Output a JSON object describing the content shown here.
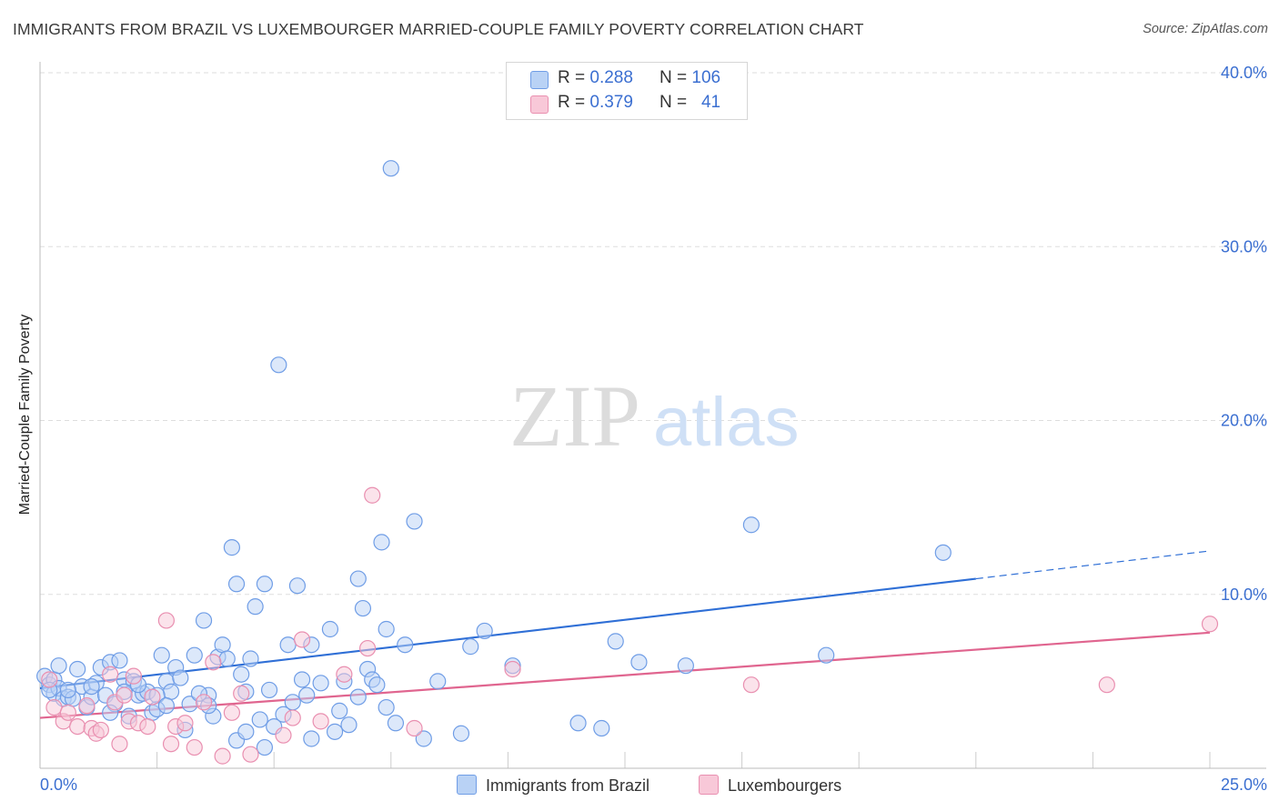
{
  "title": "IMMIGRANTS FROM BRAZIL VS LUXEMBOURGER MARRIED-COUPLE FAMILY POVERTY CORRELATION CHART",
  "source": "Source: ZipAtlas.com",
  "watermark": {
    "zip": "ZIP",
    "atlas": "atlas"
  },
  "legend_top": {
    "rows": [
      {
        "series": "Immigrants from Brazil",
        "r_label": "R =",
        "r_value": "0.288",
        "n_label": "N =",
        "n_value": "106",
        "color": "#b9d2f5"
      },
      {
        "series": "Luxembourgers",
        "r_label": "R =",
        "r_value": "0.379",
        "n_label": "N =",
        "n_value": "41",
        "color": "#f8c8d8"
      }
    ]
  },
  "legend_bottom": [
    "Immigrants from Brazil",
    "Luxembourgers"
  ],
  "chart_data": {
    "type": "scatter",
    "title": "IMMIGRANTS FROM BRAZIL VS LUXEMBOURGER MARRIED-COUPLE FAMILY POVERTY CORRELATION CHART",
    "xlabel": "",
    "ylabel": "Married-Couple Family Poverty",
    "xlim": [
      0,
      25
    ],
    "ylim": [
      0,
      40
    ],
    "x_tick_labels": [
      "0.0%",
      "25.0%"
    ],
    "y_tick_labels": [
      "10.0%",
      "20.0%",
      "30.0%",
      "40.0%"
    ],
    "y_ticks": [
      10,
      20,
      30,
      40
    ],
    "grid": true,
    "series": [
      {
        "name": "Immigrants from Brazil",
        "color": "#6f9de6",
        "fill": "#b9d2f5",
        "trend": {
          "x0": 0,
          "y0": 4.6,
          "x1": 20,
          "y1": 10.9,
          "dash_to_x": 25,
          "dash_to_y": 12.5,
          "color": "#2f6fd6"
        },
        "points": [
          [
            0.1,
            5.3
          ],
          [
            0.2,
            4.8
          ],
          [
            0.3,
            5.1
          ],
          [
            0.3,
            4.3
          ],
          [
            0.4,
            4.6
          ],
          [
            0.5,
            4.0
          ],
          [
            0.6,
            4.1
          ],
          [
            0.7,
            4.0
          ],
          [
            0.8,
            5.7
          ],
          [
            0.9,
            4.7
          ],
          [
            1.0,
            3.5
          ],
          [
            1.1,
            4.1
          ],
          [
            1.2,
            4.9
          ],
          [
            1.3,
            5.8
          ],
          [
            1.4,
            4.2
          ],
          [
            1.5,
            6.1
          ],
          [
            1.6,
            3.7
          ],
          [
            1.7,
            6.2
          ],
          [
            1.8,
            5.1
          ],
          [
            1.9,
            3.0
          ],
          [
            2.0,
            5.0
          ],
          [
            2.1,
            4.2
          ],
          [
            2.2,
            4.3
          ],
          [
            2.3,
            4.4
          ],
          [
            2.4,
            3.2
          ],
          [
            2.5,
            3.4
          ],
          [
            2.6,
            6.5
          ],
          [
            2.7,
            5.0
          ],
          [
            2.8,
            4.4
          ],
          [
            2.9,
            5.8
          ],
          [
            3.0,
            5.2
          ],
          [
            3.2,
            3.7
          ],
          [
            3.3,
            6.5
          ],
          [
            3.5,
            8.5
          ],
          [
            3.6,
            4.2
          ],
          [
            3.7,
            3.0
          ],
          [
            3.8,
            6.4
          ],
          [
            3.9,
            7.1
          ],
          [
            4.0,
            6.3
          ],
          [
            4.1,
            12.7
          ],
          [
            4.2,
            10.6
          ],
          [
            4.3,
            5.4
          ],
          [
            4.4,
            4.4
          ],
          [
            4.5,
            6.3
          ],
          [
            4.6,
            9.3
          ],
          [
            4.7,
            2.8
          ],
          [
            4.8,
            10.6
          ],
          [
            5.0,
            2.4
          ],
          [
            5.1,
            23.2
          ],
          [
            5.3,
            7.1
          ],
          [
            5.4,
            3.8
          ],
          [
            5.5,
            10.5
          ],
          [
            5.6,
            5.1
          ],
          [
            5.7,
            4.2
          ],
          [
            5.8,
            7.1
          ],
          [
            6.0,
            4.9
          ],
          [
            6.2,
            8.0
          ],
          [
            6.4,
            3.3
          ],
          [
            6.5,
            5.0
          ],
          [
            6.6,
            2.5
          ],
          [
            6.8,
            10.9
          ],
          [
            6.9,
            9.2
          ],
          [
            7.0,
            5.7
          ],
          [
            7.1,
            5.1
          ],
          [
            7.2,
            4.8
          ],
          [
            7.3,
            13.0
          ],
          [
            7.4,
            8.0
          ],
          [
            7.5,
            34.5
          ],
          [
            7.6,
            2.6
          ],
          [
            7.8,
            7.1
          ],
          [
            8.0,
            14.2
          ],
          [
            8.5,
            5.0
          ],
          [
            9.0,
            2.0
          ],
          [
            9.2,
            7.0
          ],
          [
            9.5,
            7.9
          ],
          [
            10.1,
            5.9
          ],
          [
            11.5,
            2.6
          ],
          [
            12.0,
            2.3
          ],
          [
            12.3,
            7.3
          ],
          [
            12.8,
            6.1
          ],
          [
            13.8,
            5.9
          ],
          [
            15.2,
            14.0
          ],
          [
            16.8,
            6.5
          ],
          [
            19.3,
            12.4
          ],
          [
            0.2,
            4.5
          ],
          [
            0.6,
            4.5
          ],
          [
            1.1,
            4.7
          ],
          [
            1.5,
            3.2
          ],
          [
            2.1,
            4.8
          ],
          [
            2.5,
            4.2
          ],
          [
            3.1,
            2.2
          ],
          [
            3.6,
            3.6
          ],
          [
            4.2,
            1.6
          ],
          [
            4.4,
            2.1
          ],
          [
            4.8,
            1.2
          ],
          [
            5.2,
            3.1
          ],
          [
            5.8,
            1.7
          ],
          [
            6.3,
            2.1
          ],
          [
            6.8,
            4.1
          ],
          [
            7.4,
            3.5
          ],
          [
            8.2,
            1.7
          ],
          [
            0.4,
            5.9
          ],
          [
            1.8,
            4.4
          ],
          [
            2.7,
            3.6
          ],
          [
            3.4,
            4.3
          ],
          [
            4.9,
            4.5
          ]
        ]
      },
      {
        "name": "Luxembourgers",
        "color": "#e98fb0",
        "fill": "#f8c8d8",
        "trend": {
          "x0": 0,
          "y0": 2.9,
          "x1": 25,
          "y1": 7.8,
          "color": "#e0658f"
        },
        "points": [
          [
            0.2,
            5.1
          ],
          [
            0.3,
            3.5
          ],
          [
            0.5,
            2.7
          ],
          [
            0.6,
            3.2
          ],
          [
            0.8,
            2.4
          ],
          [
            1.0,
            3.6
          ],
          [
            1.1,
            2.3
          ],
          [
            1.2,
            2.0
          ],
          [
            1.3,
            2.2
          ],
          [
            1.5,
            5.4
          ],
          [
            1.6,
            3.8
          ],
          [
            1.7,
            1.4
          ],
          [
            1.8,
            4.2
          ],
          [
            1.9,
            2.7
          ],
          [
            2.0,
            5.3
          ],
          [
            2.1,
            2.6
          ],
          [
            2.3,
            2.4
          ],
          [
            2.4,
            4.1
          ],
          [
            2.7,
            8.5
          ],
          [
            2.8,
            1.4
          ],
          [
            2.9,
            2.4
          ],
          [
            3.1,
            2.6
          ],
          [
            3.3,
            1.2
          ],
          [
            3.5,
            3.8
          ],
          [
            3.7,
            6.1
          ],
          [
            3.9,
            0.7
          ],
          [
            4.1,
            3.2
          ],
          [
            4.3,
            4.3
          ],
          [
            5.2,
            1.9
          ],
          [
            5.4,
            2.9
          ],
          [
            5.6,
            7.4
          ],
          [
            6.0,
            2.7
          ],
          [
            6.5,
            5.4
          ],
          [
            7.0,
            6.9
          ],
          [
            7.1,
            15.7
          ],
          [
            8.0,
            2.3
          ],
          [
            10.1,
            5.7
          ],
          [
            15.2,
            4.8
          ],
          [
            22.8,
            4.8
          ],
          [
            25.0,
            8.3
          ],
          [
            4.5,
            0.8
          ]
        ]
      }
    ]
  }
}
